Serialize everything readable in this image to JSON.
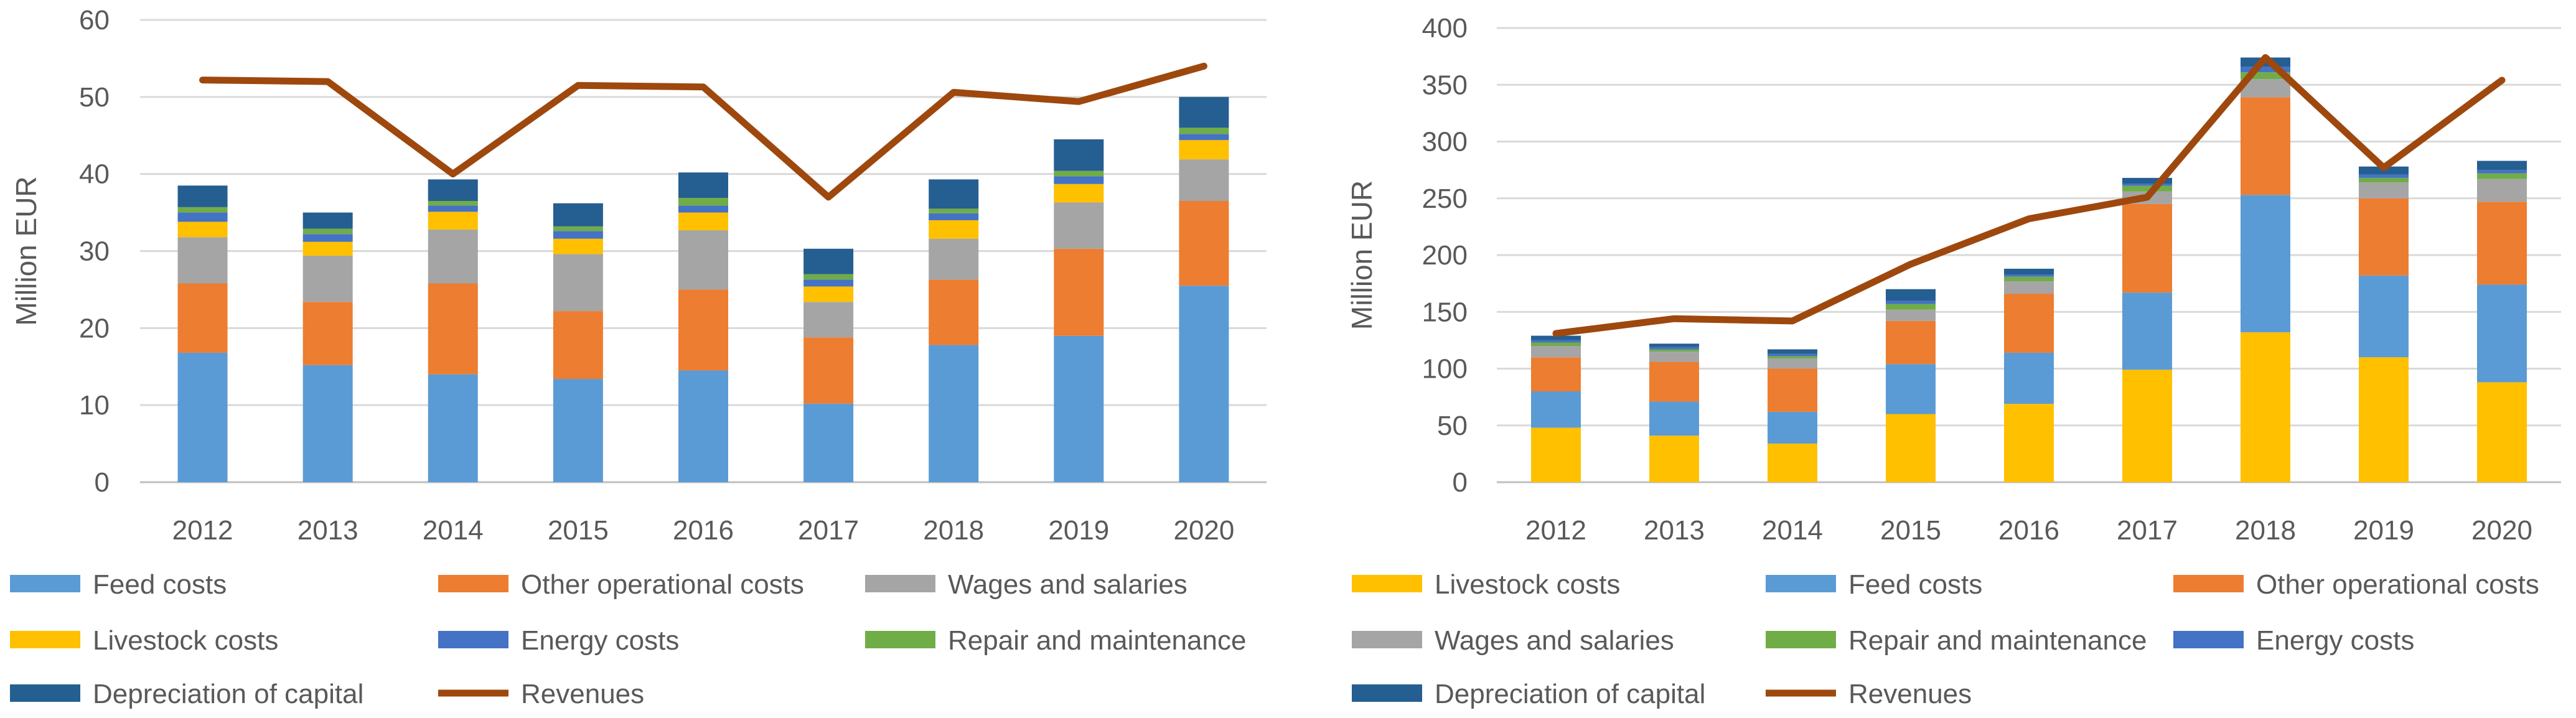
{
  "colors": {
    "feed": "#5b9bd5",
    "other": "#ed7d31",
    "wages": "#a5a5a5",
    "livestock": "#ffc000",
    "energy": "#4472c4",
    "repair": "#70ad47",
    "depreciation": "#255e91",
    "revenues": "#9e480e",
    "grid": "#d9d9d9",
    "text": "#595959"
  },
  "chart_data": [
    {
      "type": "bar",
      "stacked": true,
      "ylabel": "Million EUR",
      "xlabel": "",
      "ylim": [
        0,
        60
      ],
      "yticks": [
        0,
        10,
        20,
        30,
        40,
        50,
        60
      ],
      "grid": true,
      "legend": "bottom",
      "categories": [
        "2012",
        "2013",
        "2014",
        "2015",
        "2016",
        "2017",
        "2018",
        "2019",
        "2020"
      ],
      "series": [
        {
          "name": "Feed costs",
          "key": "feed",
          "values": [
            16.8,
            15.2,
            14.0,
            13.4,
            14.5,
            10.2,
            17.8,
            19.0,
            25.5
          ]
        },
        {
          "name": "Other operational costs",
          "key": "other",
          "values": [
            9.0,
            8.2,
            11.8,
            8.8,
            10.5,
            8.6,
            8.5,
            11.3,
            11.0
          ]
        },
        {
          "name": "Wages and salaries",
          "key": "wages",
          "values": [
            6.0,
            6.0,
            7.0,
            7.4,
            7.7,
            4.6,
            5.3,
            6.0,
            5.4
          ]
        },
        {
          "name": "Livestock costs",
          "key": "livestock",
          "values": [
            2.0,
            1.8,
            2.3,
            2.0,
            2.3,
            2.0,
            2.4,
            2.4,
            2.5
          ]
        },
        {
          "name": "Energy costs",
          "key": "energy",
          "values": [
            1.2,
            1.0,
            0.8,
            1.0,
            0.9,
            0.9,
            0.9,
            1.0,
            0.8
          ]
        },
        {
          "name": "Repair and maintenance",
          "key": "repair",
          "values": [
            0.7,
            0.7,
            0.6,
            0.6,
            1.0,
            0.7,
            0.6,
            0.7,
            0.8
          ]
        },
        {
          "name": "Depreciation of capital",
          "key": "depreciation",
          "values": [
            2.8,
            2.1,
            2.8,
            3.0,
            3.3,
            3.3,
            3.8,
            4.1,
            4.0
          ]
        }
      ],
      "line": {
        "name": "Revenues",
        "key": "revenues",
        "values": [
          52.2,
          52.0,
          40.0,
          51.5,
          51.3,
          37.0,
          50.6,
          49.4,
          54.0
        ]
      },
      "legend_order": [
        "feed",
        "other",
        "wages",
        "livestock",
        "energy",
        "repair",
        "depreciation",
        "revenues"
      ]
    },
    {
      "type": "bar",
      "stacked": true,
      "ylabel": "Million EUR",
      "xlabel": "",
      "ylim": [
        0,
        400
      ],
      "yticks": [
        0,
        50,
        100,
        150,
        200,
        250,
        300,
        350,
        400
      ],
      "grid": true,
      "legend": "bottom",
      "categories": [
        "2012",
        "2013",
        "2014",
        "2015",
        "2016",
        "2017",
        "2018",
        "2019",
        "2020"
      ],
      "series": [
        {
          "name": "Livestock costs",
          "key": "livestock",
          "values": [
            48,
            41,
            34,
            60,
            69,
            99,
            132,
            110,
            88
          ]
        },
        {
          "name": "Feed costs",
          "key": "feed",
          "values": [
            32,
            30,
            28,
            44,
            45,
            68,
            121,
            72,
            86
          ]
        },
        {
          "name": "Other operational costs",
          "key": "other",
          "values": [
            30,
            35,
            38,
            38,
            52,
            78,
            86,
            68,
            73
          ]
        },
        {
          "name": "Wages and salaries",
          "key": "wages",
          "values": [
            10,
            9,
            9,
            10,
            11,
            11,
            16,
            14,
            20
          ]
        },
        {
          "name": "Repair and maintenance",
          "key": "repair",
          "values": [
            3,
            2,
            2,
            5,
            4,
            5,
            6,
            4,
            5
          ]
        },
        {
          "name": "Energy costs",
          "key": "energy",
          "values": [
            2,
            2,
            2,
            3,
            2,
            2,
            5,
            3,
            3
          ]
        },
        {
          "name": "Depreciation of capital",
          "key": "depreciation",
          "values": [
            4,
            3,
            4,
            10,
            5,
            5,
            8,
            7,
            8
          ]
        }
      ],
      "line": {
        "name": "Revenues",
        "key": "revenues",
        "values": [
          131,
          144,
          142,
          192,
          232,
          251,
          374,
          277,
          354
        ]
      },
      "legend_order": [
        "livestock",
        "feed",
        "other",
        "wages",
        "repair",
        "energy",
        "depreciation",
        "revenues"
      ]
    }
  ]
}
